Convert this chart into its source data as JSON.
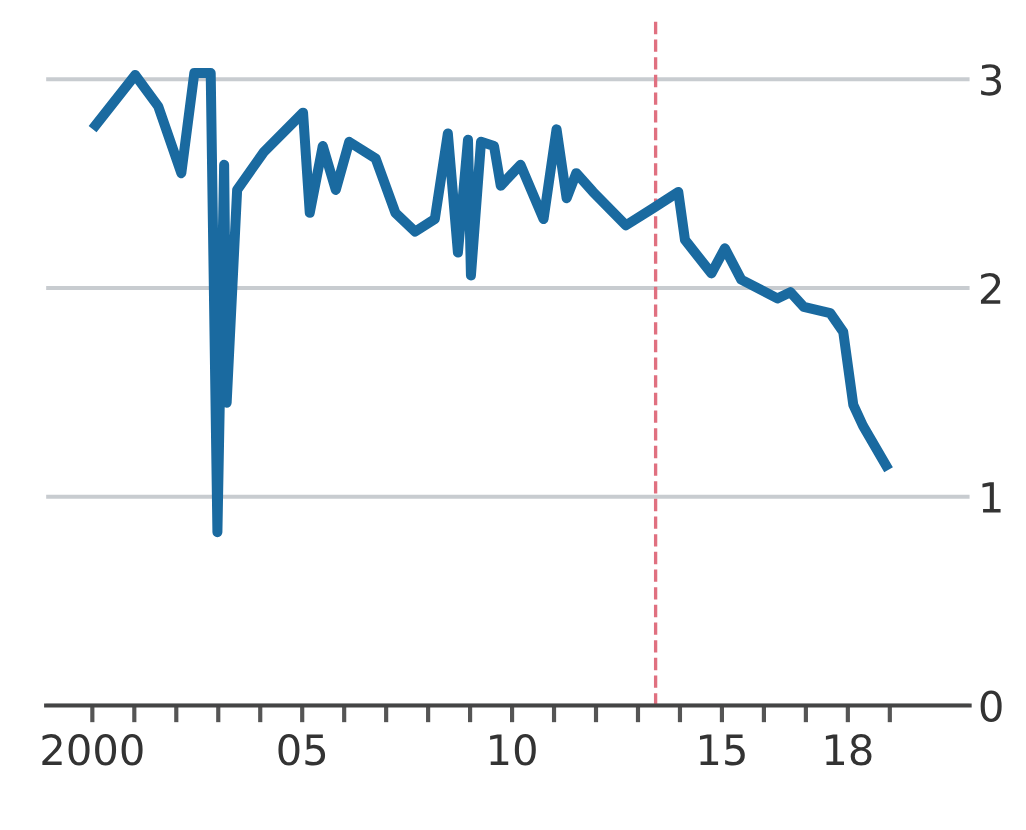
{
  "chart_data": {
    "type": "line",
    "x": [
      2000.08,
      2001.02,
      2001.57,
      2002.12,
      2002.43,
      2002.82,
      2002.98,
      2003.14,
      2003.2,
      2003.45,
      2004.08,
      2005.02,
      2005.18,
      2005.49,
      2005.8,
      2006.12,
      2006.75,
      2007.22,
      2007.69,
      2008.16,
      2008.47,
      2008.71,
      2008.95,
      2009.02,
      2009.26,
      2009.57,
      2009.73,
      2010.2,
      2010.75,
      2011.06,
      2011.3,
      2011.53,
      2011.93,
      2012.71,
      2013.34,
      2013.96,
      2014.12,
      2014.75,
      2015.07,
      2015.46,
      2016.32,
      2016.63,
      2016.95,
      2017.58,
      2017.89,
      2018.13,
      2018.36,
      2018.91
    ],
    "series": [
      {
        "color": "#1a6aa0",
        "values": [
          2.78,
          3.02,
          2.87,
          2.55,
          3.03,
          3.03,
          0.83,
          2.59,
          1.45,
          2.47,
          2.65,
          2.84,
          2.36,
          2.68,
          2.47,
          2.7,
          2.62,
          2.36,
          2.27,
          2.33,
          2.74,
          2.17,
          2.71,
          2.06,
          2.7,
          2.68,
          2.49,
          2.59,
          2.33,
          2.76,
          2.43,
          2.55,
          2.46,
          2.3,
          2.38,
          2.46,
          2.23,
          2.07,
          2.19,
          2.04,
          1.95,
          1.98,
          1.91,
          1.88,
          1.79,
          1.44,
          1.34,
          1.15
        ]
      }
    ],
    "xlim": [
      1998.9,
      2020.9
    ],
    "xticks": [
      2000,
      {
        "value": 2001,
        "label": null
      },
      {
        "value": 2002,
        "label": null
      },
      {
        "value": 2003,
        "label": null
      },
      {
        "value": 2004,
        "label": null
      },
      {
        "value": 2005,
        "label": "05"
      },
      {
        "value": 2006,
        "label": null
      },
      {
        "value": 2007,
        "label": null
      },
      {
        "value": 2008,
        "label": null
      },
      {
        "value": 2009,
        "label": null
      },
      {
        "value": 2010,
        "label": "10"
      },
      {
        "value": 2011,
        "label": null
      },
      {
        "value": 2012,
        "label": null
      },
      {
        "value": 2013,
        "label": null
      },
      {
        "value": 2014,
        "label": null
      },
      {
        "value": 2015,
        "label": "15"
      },
      {
        "value": 2016,
        "label": null
      },
      {
        "value": 2017,
        "label": null
      },
      {
        "value": 2018,
        "label": "18"
      },
      {
        "value": 2019,
        "label": null
      }
    ],
    "ylim": [
      0,
      3.3
    ],
    "yticks": [
      0,
      1,
      2,
      3
    ],
    "grid": "y",
    "line_style": "solid",
    "marker": "none",
    "ref_lines": [
      {
        "axis": "x",
        "value": 2013.42,
        "label": null,
        "color": "#e07080",
        "line_style": "dashed"
      }
    ]
  }
}
